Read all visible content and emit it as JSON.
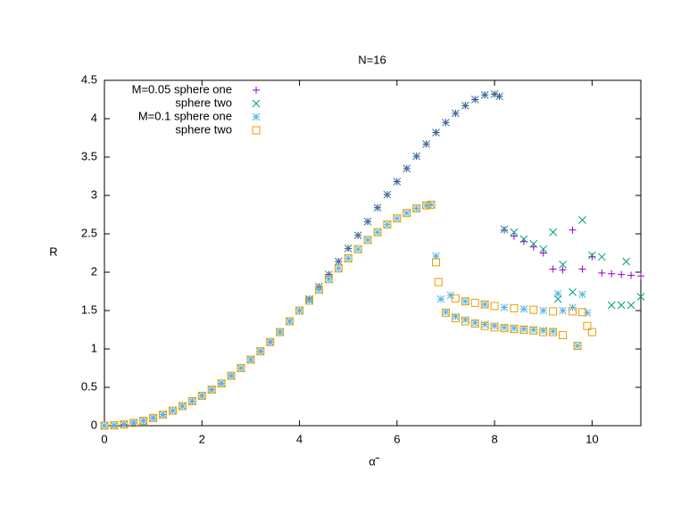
{
  "chart_data": {
    "type": "scatter",
    "title": "N=16",
    "x_label": "α̃",
    "y_label": "R",
    "xlim": [
      0,
      11
    ],
    "ylim": [
      0,
      4.5
    ],
    "xticks": [
      0,
      2,
      4,
      6,
      8,
      10
    ],
    "yticks": [
      0,
      0.5,
      1,
      1.5,
      2,
      2.5,
      3,
      3.5,
      4,
      4.5
    ],
    "legend": "top-left",
    "series": [
      {
        "name": "M=0.05 sphere one",
        "color": "#9400d3",
        "marker": "plus",
        "x": [
          0,
          0.2,
          0.4,
          0.6,
          0.8,
          1.0,
          1.2,
          1.4,
          1.6,
          1.8,
          2.0,
          2.2,
          2.4,
          2.6,
          2.8,
          3.0,
          3.2,
          3.4,
          3.6,
          3.8,
          4.0,
          4.2,
          4.4,
          4.6,
          4.8,
          5.0,
          5.2,
          5.4,
          5.6,
          5.8,
          6.0,
          6.2,
          6.4,
          6.6,
          6.8,
          7.0,
          7.2,
          7.4,
          7.6,
          7.8,
          8.0,
          8.1,
          8.2,
          8.4,
          8.6,
          8.8,
          9.0,
          9.2,
          9.4,
          9.6,
          9.8,
          10.0,
          10.2,
          10.4,
          10.6,
          10.8,
          11.0
        ],
        "values": [
          0,
          0.004,
          0.016,
          0.036,
          0.064,
          0.1,
          0.144,
          0.196,
          0.256,
          0.32,
          0.39,
          0.47,
          0.55,
          0.65,
          0.75,
          0.86,
          0.97,
          1.09,
          1.22,
          1.36,
          1.5,
          1.65,
          1.81,
          1.97,
          2.14,
          2.31,
          2.48,
          2.66,
          2.84,
          3.01,
          3.18,
          3.35,
          3.51,
          3.67,
          3.82,
          3.95,
          4.07,
          4.17,
          4.25,
          4.31,
          4.32,
          4.29,
          2.55,
          2.47,
          2.4,
          2.33,
          2.25,
          2.04,
          2.03,
          2.55,
          2.04,
          2.2,
          1.99,
          1.98,
          1.97,
          1.96,
          1.95
        ]
      },
      {
        "name": "sphere two",
        "color": "#009e73",
        "marker": "cross",
        "x": [
          0,
          0.2,
          0.4,
          0.6,
          0.8,
          1.0,
          1.2,
          1.4,
          1.6,
          1.8,
          2.0,
          2.2,
          2.4,
          2.6,
          2.8,
          3.0,
          3.2,
          3.4,
          3.6,
          3.8,
          4.0,
          4.2,
          4.4,
          4.6,
          4.8,
          5.0,
          5.2,
          5.4,
          5.6,
          5.8,
          6.0,
          6.2,
          6.4,
          6.6,
          6.8,
          7.0,
          7.2,
          7.4,
          7.6,
          7.8,
          8.0,
          8.1,
          8.2,
          8.4,
          8.6,
          8.8,
          9.0,
          9.2,
          9.3,
          9.4,
          9.6,
          9.8,
          10.0,
          10.2,
          10.4,
          10.6,
          10.7,
          10.8,
          11.0
        ],
        "values": [
          0,
          0.004,
          0.016,
          0.036,
          0.064,
          0.1,
          0.144,
          0.196,
          0.256,
          0.32,
          0.39,
          0.47,
          0.55,
          0.65,
          0.75,
          0.86,
          0.97,
          1.09,
          1.22,
          1.36,
          1.5,
          1.65,
          1.81,
          1.97,
          2.14,
          2.31,
          2.48,
          2.66,
          2.84,
          3.01,
          3.18,
          3.35,
          3.51,
          3.67,
          3.82,
          3.95,
          4.07,
          4.17,
          4.25,
          4.31,
          4.32,
          4.29,
          2.56,
          2.52,
          2.43,
          2.37,
          2.3,
          2.52,
          1.65,
          2.1,
          1.74,
          2.68,
          2.22,
          2.2,
          1.57,
          1.57,
          2.14,
          1.57,
          1.68
        ]
      },
      {
        "name": "M=0.1 sphere one",
        "color": "#56b4e9",
        "marker": "star",
        "x": [
          0,
          0.2,
          0.4,
          0.6,
          0.8,
          1.0,
          1.2,
          1.4,
          1.6,
          1.8,
          2.0,
          2.2,
          2.4,
          2.6,
          2.8,
          3.0,
          3.2,
          3.4,
          3.6,
          3.8,
          4.0,
          4.2,
          4.4,
          4.6,
          4.8,
          5.0,
          5.2,
          5.4,
          5.6,
          5.8,
          6.0,
          6.2,
          6.4,
          6.6,
          6.7,
          6.8,
          6.9,
          7.0,
          7.2,
          7.4,
          7.6,
          7.8,
          8.0,
          8.2,
          8.4,
          8.6,
          8.8,
          9.0,
          9.2,
          9.3,
          9.4,
          9.6,
          9.7,
          9.8,
          9.9,
          7.1,
          7.4,
          7.8,
          8.2,
          8.6,
          9.0
        ],
        "values": [
          0,
          0.004,
          0.016,
          0.036,
          0.064,
          0.1,
          0.144,
          0.196,
          0.256,
          0.32,
          0.39,
          0.47,
          0.55,
          0.65,
          0.75,
          0.86,
          0.97,
          1.09,
          1.22,
          1.36,
          1.5,
          1.63,
          1.77,
          1.91,
          2.05,
          2.18,
          2.3,
          2.42,
          2.52,
          2.62,
          2.7,
          2.77,
          2.83,
          2.87,
          2.88,
          2.21,
          1.65,
          1.48,
          1.42,
          1.38,
          1.34,
          1.32,
          1.3,
          1.28,
          1.27,
          1.26,
          1.25,
          1.24,
          1.23,
          1.72,
          1.5,
          1.54,
          1.04,
          1.71,
          1.47,
          1.7,
          1.62,
          1.58,
          1.54,
          1.52,
          1.5
        ]
      },
      {
        "name": "sphere two",
        "color": "#e69f00",
        "marker": "square",
        "x": [
          0,
          0.2,
          0.4,
          0.6,
          0.8,
          1.0,
          1.2,
          1.4,
          1.6,
          1.8,
          2.0,
          2.2,
          2.4,
          2.6,
          2.8,
          3.0,
          3.2,
          3.4,
          3.6,
          3.8,
          4.0,
          4.2,
          4.4,
          4.6,
          4.8,
          5.0,
          5.2,
          5.4,
          5.6,
          5.8,
          6.0,
          6.2,
          6.4,
          6.6,
          6.7,
          6.8,
          6.85,
          7.0,
          7.2,
          7.4,
          7.6,
          7.8,
          8.0,
          8.2,
          8.4,
          8.6,
          8.8,
          9.0,
          9.2,
          9.4,
          9.6,
          9.8,
          7.2,
          7.4,
          7.6,
          7.8,
          8.0,
          8.4,
          8.8,
          9.2,
          9.7,
          9.9,
          10.0
        ],
        "values": [
          0,
          0.004,
          0.016,
          0.036,
          0.064,
          0.1,
          0.144,
          0.196,
          0.256,
          0.32,
          0.39,
          0.47,
          0.55,
          0.65,
          0.75,
          0.86,
          0.97,
          1.09,
          1.22,
          1.36,
          1.5,
          1.63,
          1.77,
          1.91,
          2.05,
          2.18,
          2.3,
          2.42,
          2.52,
          2.62,
          2.7,
          2.77,
          2.83,
          2.87,
          2.88,
          2.13,
          1.87,
          1.47,
          1.4,
          1.36,
          1.33,
          1.3,
          1.28,
          1.27,
          1.26,
          1.25,
          1.24,
          1.22,
          1.22,
          1.18,
          1.49,
          1.48,
          1.66,
          1.62,
          1.6,
          1.58,
          1.56,
          1.53,
          1.51,
          1.49,
          1.04,
          1.3,
          1.22
        ]
      }
    ]
  }
}
